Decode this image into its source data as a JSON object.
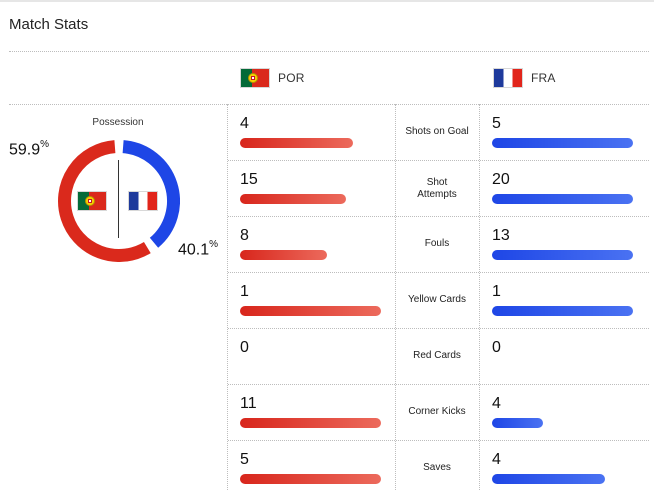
{
  "header": {
    "title": "Match Stats"
  },
  "teams": {
    "home": {
      "code": "POR",
      "color": "#da291c"
    },
    "away": {
      "code": "FRA",
      "color": "#1e46e6"
    }
  },
  "possession": {
    "label": "Possession",
    "home_value": "59.9",
    "away_value": "40.1",
    "percent_sign": "%",
    "home_fraction": 0.599,
    "away_fraction": 0.401
  },
  "stats": [
    {
      "label": "Shots on Goal",
      "home": "4",
      "away": "5",
      "home_fill": 0.8,
      "away_fill": 1.0
    },
    {
      "label": "Shot Attempts",
      "home": "15",
      "away": "20",
      "home_fill": 0.75,
      "away_fill": 1.0
    },
    {
      "label": "Fouls",
      "home": "8",
      "away": "13",
      "home_fill": 0.615,
      "away_fill": 1.0
    },
    {
      "label": "Yellow Cards",
      "home": "1",
      "away": "1",
      "home_fill": 1.0,
      "away_fill": 1.0
    },
    {
      "label": "Red Cards",
      "home": "0",
      "away": "0",
      "home_fill": 0,
      "away_fill": 0
    },
    {
      "label": "Corner Kicks",
      "home": "11",
      "away": "4",
      "home_fill": 1.0,
      "away_fill": 0.364
    },
    {
      "label": "Saves",
      "home": "5",
      "away": "4",
      "home_fill": 1.0,
      "away_fill": 0.8
    }
  ]
}
